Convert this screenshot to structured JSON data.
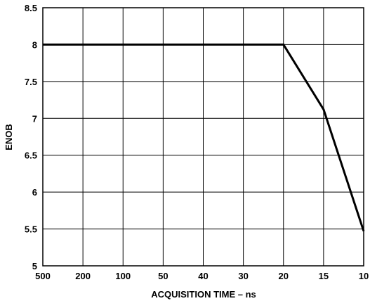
{
  "chart_data": {
    "type": "line",
    "title": "",
    "xlabel": "ACQUISITION TIME – ns",
    "ylabel": "ENOB",
    "x_tick_labels": [
      "500",
      "200",
      "100",
      "50",
      "40",
      "30",
      "20",
      "15",
      "10"
    ],
    "y_tick_labels": [
      "5",
      "5.5",
      "6",
      "6.5",
      "7",
      "7.5",
      "8",
      "8.5"
    ],
    "y_ticks": [
      5,
      5.5,
      6,
      6.5,
      7,
      7.5,
      8,
      8.5
    ],
    "ylim": [
      5,
      8.5
    ],
    "grid": true,
    "x_axis_scale": "categorical-even-spacing",
    "series": [
      {
        "x": [
          "500",
          "200",
          "100",
          "50",
          "40",
          "30",
          "20",
          "15",
          "10"
        ],
        "y": [
          8,
          8,
          8,
          8,
          8,
          8,
          8,
          7.12,
          5.47
        ]
      }
    ]
  },
  "colors": {
    "line": "#000000",
    "grid": "#000000",
    "background": "#ffffff"
  }
}
